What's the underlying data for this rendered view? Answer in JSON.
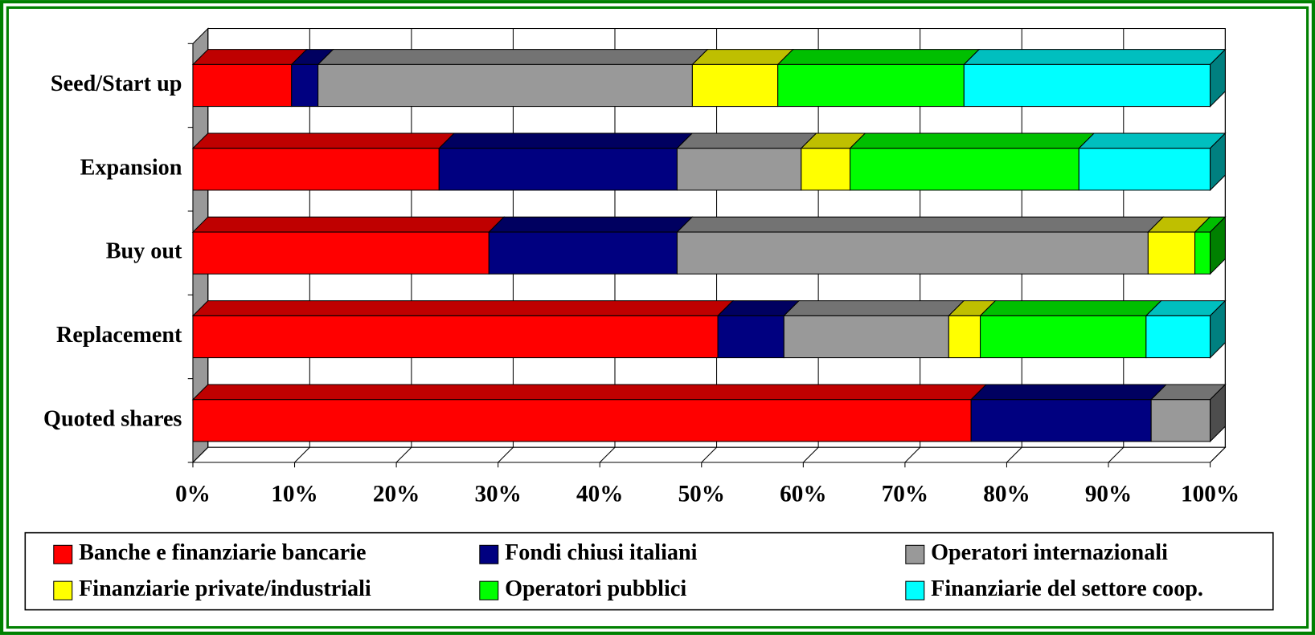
{
  "chart_data": {
    "type": "stacked-bar-horizontal-3d",
    "categories": [
      "Seed/Start up",
      "Expansion",
      "Buy out",
      "Replacement",
      "Quoted shares"
    ],
    "series": [
      {
        "name": "Banche e finanziarie bancarie",
        "color": "#ff0000",
        "values": [
          9.7,
          24.2,
          29.1,
          51.6,
          76.5
        ]
      },
      {
        "name": "Fondi chiusi italiani",
        "color": "#000080",
        "values": [
          2.6,
          23.4,
          18.5,
          6.5,
          17.7
        ]
      },
      {
        "name": "Operatori internazionali",
        "color": "#999999",
        "values": [
          36.8,
          12.2,
          46.3,
          16.2,
          5.8
        ]
      },
      {
        "name": "Finanziarie private/industriali",
        "color": "#ffff00",
        "values": [
          8.4,
          4.8,
          4.6,
          3.1,
          0
        ]
      },
      {
        "name": "Operatori pubblici",
        "color": "#00ff00",
        "values": [
          18.3,
          22.5,
          1.5,
          16.3,
          0
        ]
      },
      {
        "name": "Finanziarie del settore coop.",
        "color": "#00ffff",
        "values": [
          24.2,
          12.9,
          0,
          6.3,
          0
        ]
      }
    ],
    "xlim": [
      0,
      100
    ],
    "xticks": [
      {
        "value": 0,
        "label": "0%"
      },
      {
        "value": 10,
        "label": "10%"
      },
      {
        "value": 20,
        "label": "20%"
      },
      {
        "value": 30,
        "label": "30%"
      },
      {
        "value": 40,
        "label": "40%"
      },
      {
        "value": 50,
        "label": "50%"
      },
      {
        "value": 60,
        "label": "60%"
      },
      {
        "value": 70,
        "label": "70%"
      },
      {
        "value": 80,
        "label": "80%"
      },
      {
        "value": 90,
        "label": "90%"
      },
      {
        "value": 100,
        "label": "100%"
      }
    ],
    "grid": true,
    "legend": "bottom"
  }
}
